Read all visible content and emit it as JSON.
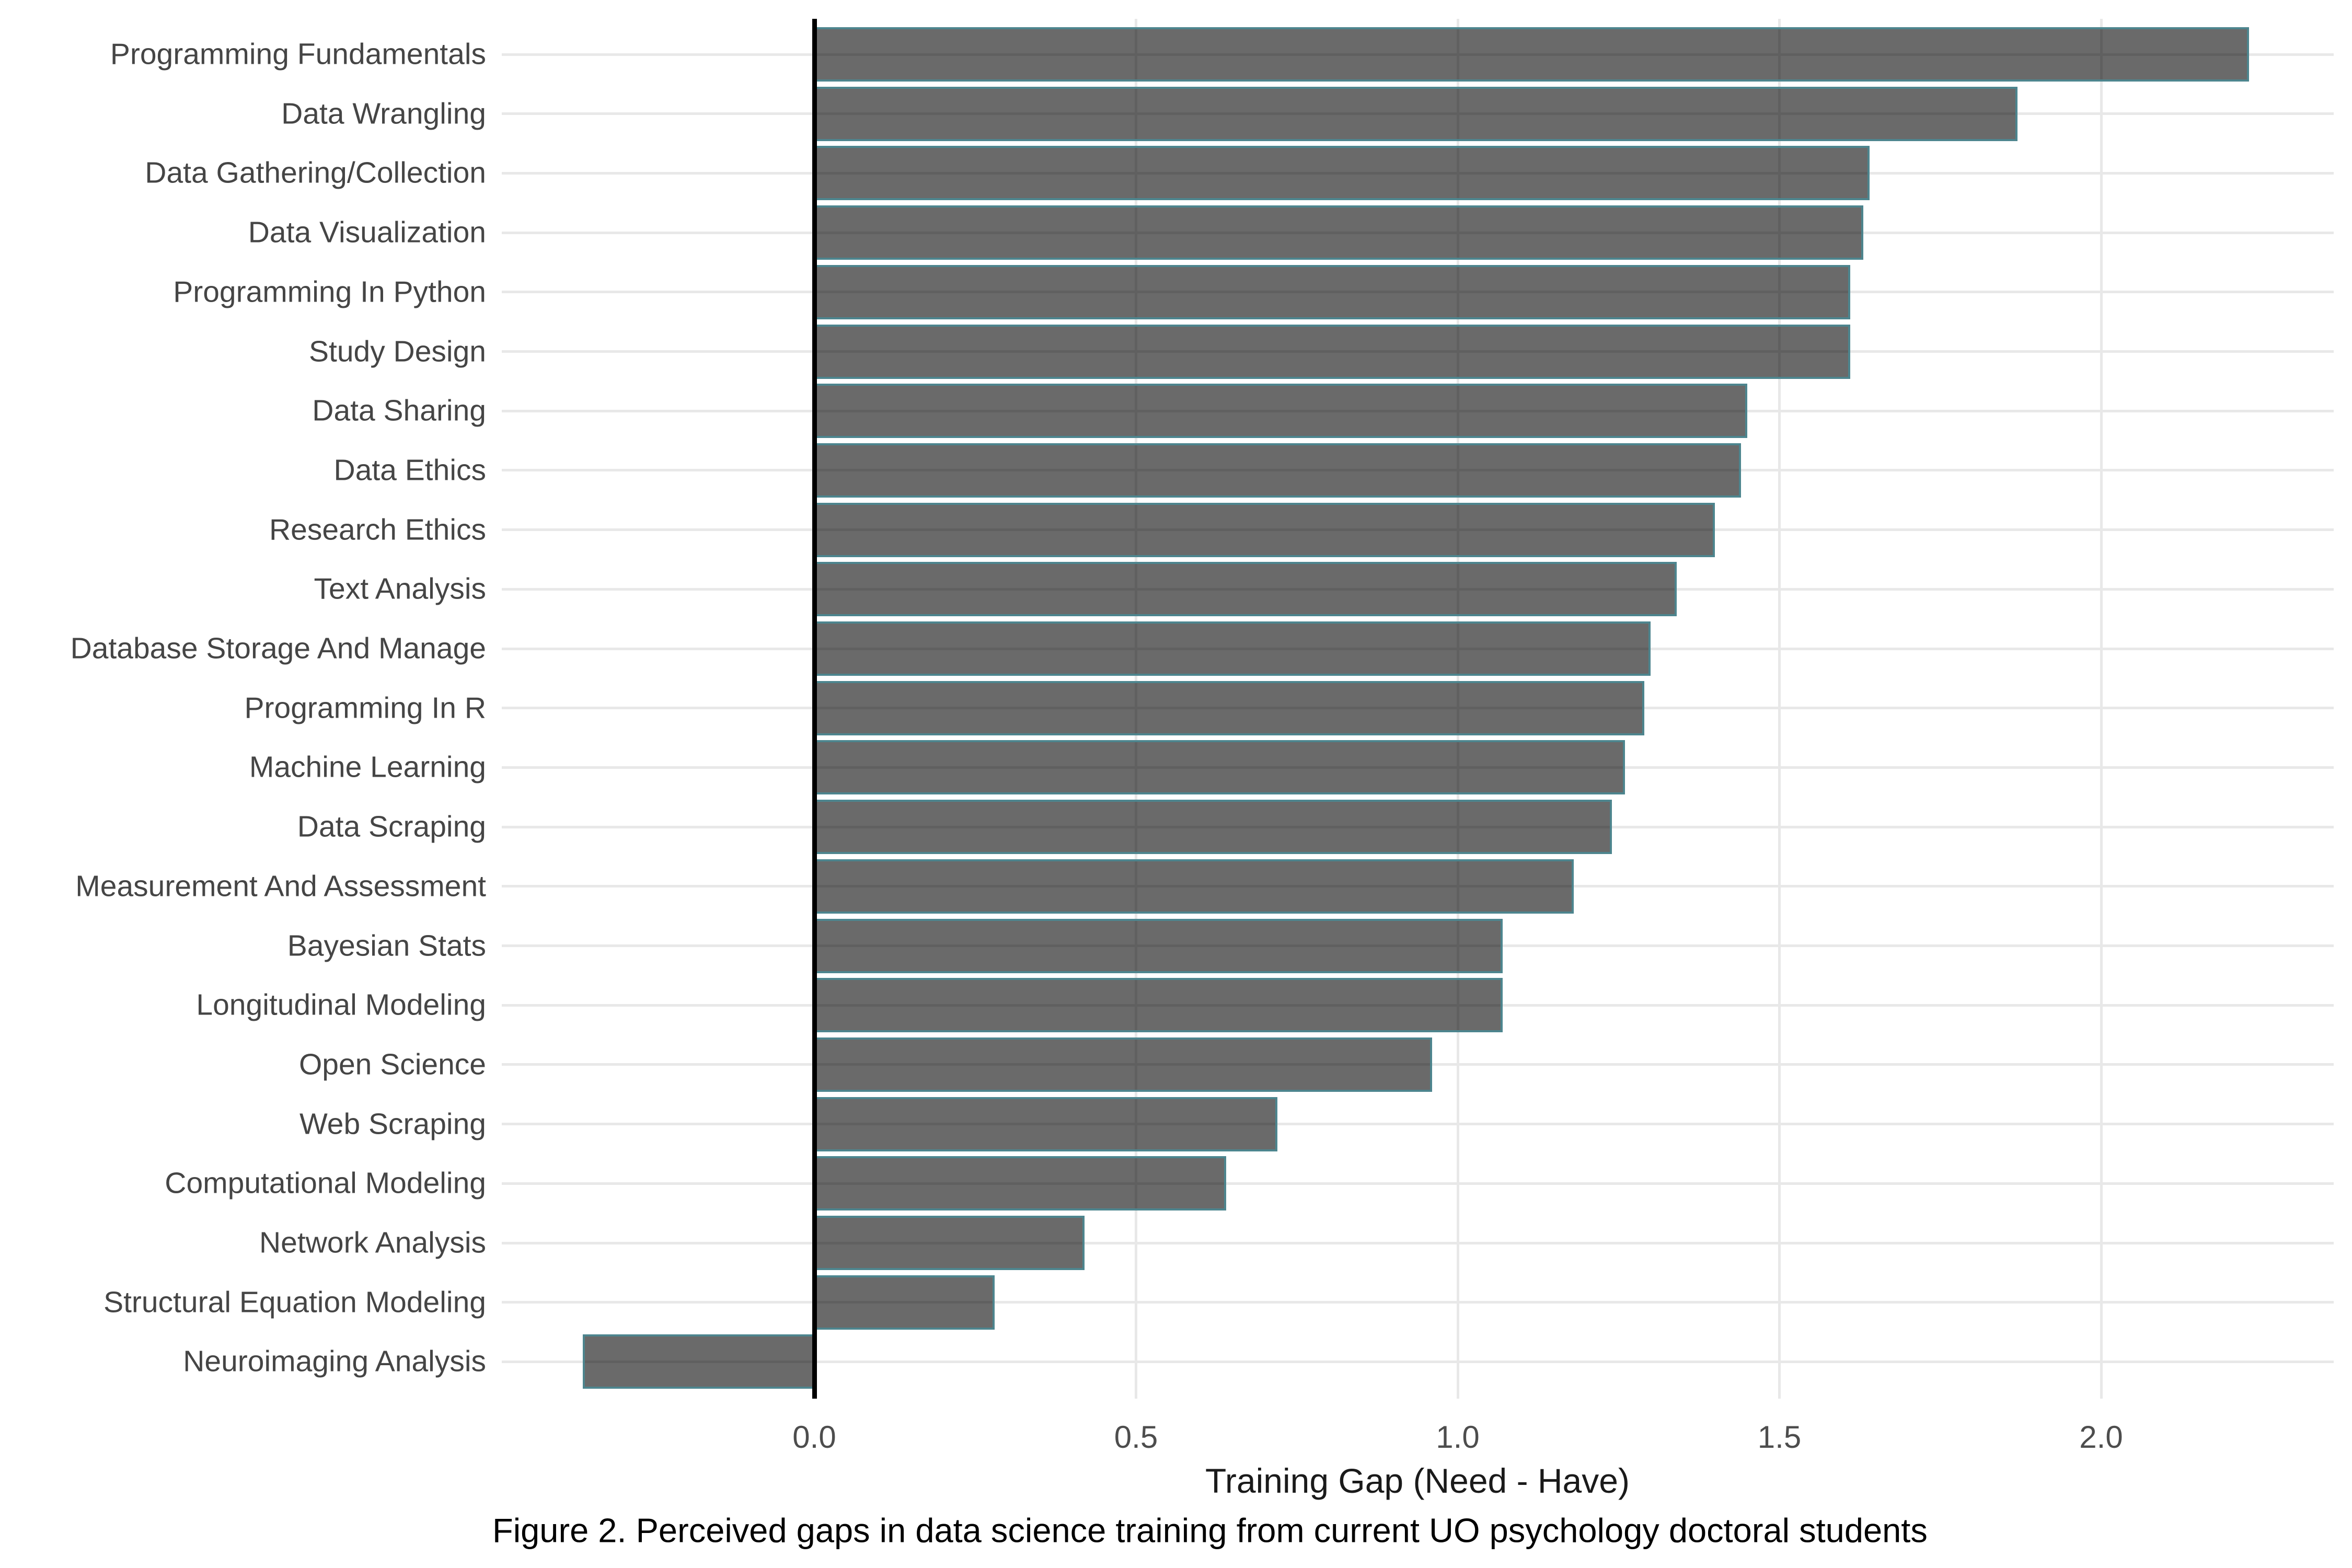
{
  "figure": {
    "xlabel": "Training Gap (Need - Have)",
    "caption": "Figure 2. Perceived gaps in data science training from current UO psychology doctoral students"
  },
  "chart_data": {
    "type": "bar",
    "orientation": "horizontal",
    "title": "",
    "xlabel": "Training Gap (Need - Have)",
    "ylabel": "",
    "categories": [
      "Programming Fundamentals",
      "Data Wrangling",
      "Data Gathering/Collection",
      "Data Visualization",
      "Programming In Python",
      "Study Design",
      "Data Sharing",
      "Data Ethics",
      "Research Ethics",
      "Text Analysis",
      "Database Storage And Manage",
      "Programming In R",
      "Machine Learning",
      "Data Scraping",
      "Measurement And Assessment",
      "Bayesian Stats",
      "Longitudinal Modeling",
      "Open Science",
      "Web Scraping",
      "Computational Modeling",
      "Network Analysis",
      "Structural Equation Modeling",
      "Neuroimaging Analysis"
    ],
    "values": [
      2.23,
      1.87,
      1.64,
      1.63,
      1.61,
      1.61,
      1.45,
      1.44,
      1.4,
      1.34,
      1.3,
      1.29,
      1.26,
      1.24,
      1.18,
      1.07,
      1.07,
      0.96,
      0.72,
      0.64,
      0.42,
      0.28,
      -0.36
    ],
    "xticks": [
      0.0,
      0.5,
      1.0,
      1.5,
      2.0
    ],
    "xtick_labels": [
      "0.0",
      "0.5",
      "1.0",
      "1.5",
      "2.0"
    ],
    "xlim": [
      -0.49,
      2.36
    ],
    "grid": true,
    "legend": false,
    "colors": {
      "bar_fill": "#6A6A6A",
      "bar_fill_rgba": "rgba(0,0,0,0.585)",
      "bar_stroke": "#4D858E",
      "zero_line": "#000000",
      "gridline": "#E8E8E8",
      "axis_text": "#4D4D4D",
      "background": "#FFFFFF"
    },
    "caption": "Figure 2. Perceived gaps in data science training from current UO psychology doctoral students"
  }
}
